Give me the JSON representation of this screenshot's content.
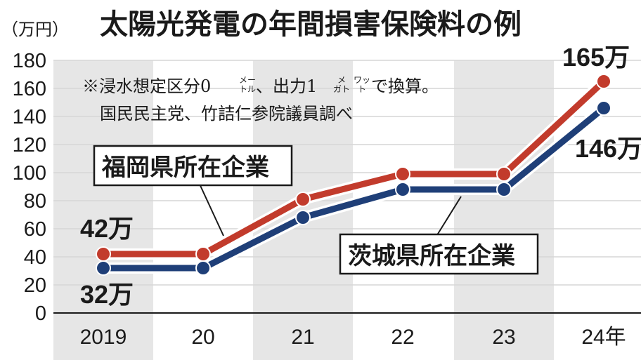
{
  "title": "太陽光発電の年間損害保険料の例",
  "y_unit": "（万円）",
  "note": {
    "line1_prefix": "※浸水想定区分0",
    "line1_unit_a_top": "メー",
    "line1_unit_a_bottom": "トル",
    "line1_mid": "、出力1",
    "line1_unit_b_top": "メ",
    "line1_unit_b_bottom": "ガト",
    "line1_unit_c_top": "ワッ",
    "line1_unit_c_bottom": "ト",
    "line1_suffix": "で換算。",
    "line2": "国民民主党、竹詰仁参院議員調べ"
  },
  "colors": {
    "fukuoka": "#c23b2c",
    "ibaraki": "#1f3f78",
    "band": "#e6e6e6",
    "grid": "#d6d6d6"
  },
  "chart_data": {
    "type": "line",
    "title": "太陽光発電の年間損害保険料の例",
    "ylabel": "（万円）",
    "xlabel": "",
    "categories": [
      "2019",
      "20",
      "21",
      "22",
      "23",
      "24年"
    ],
    "ylim": [
      0,
      180
    ],
    "yticks": [
      0,
      20,
      40,
      60,
      80,
      100,
      120,
      140,
      160,
      180
    ],
    "grid": true,
    "series": [
      {
        "name": "福岡県所在企業",
        "values": [
          42,
          42,
          81,
          99,
          99,
          165
        ],
        "color": "#c23b2c"
      },
      {
        "name": "茨城県所在企業",
        "values": [
          32,
          32,
          68,
          88,
          88,
          146
        ],
        "color": "#1f3f78"
      }
    ],
    "annotations": {
      "fukuoka_start": "42万",
      "fukuoka_end": "165万",
      "ibaraki_start": "32万",
      "ibaraki_end": "146万"
    }
  }
}
